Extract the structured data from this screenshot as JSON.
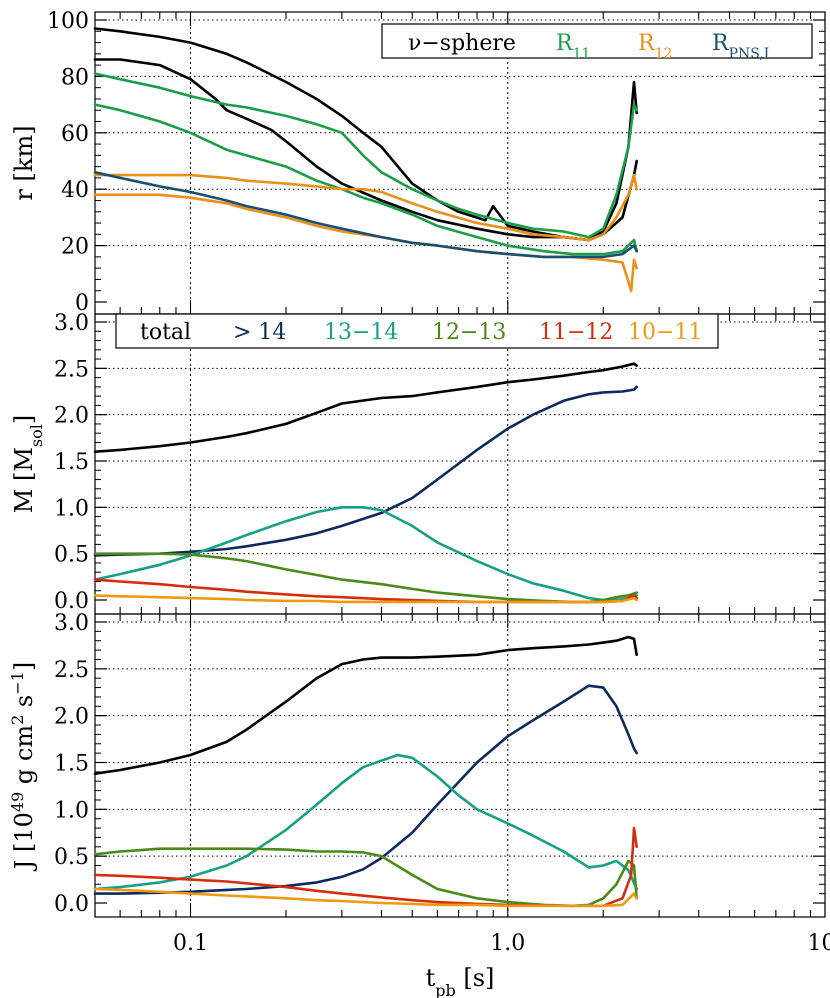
{
  "chart_data": [
    {
      "type": "line",
      "xscale": "log",
      "xlim": [
        0.05,
        10.0
      ],
      "ylim": [
        0,
        100
      ],
      "yticks": [
        "0",
        "20",
        "40",
        "60",
        "80",
        "100"
      ],
      "ylabel": "r [km]",
      "grid": true,
      "legend": {
        "placement": "top-right",
        "labels": [
          {
            "text": "ν−sphere",
            "sub": "",
            "color": "#000000"
          },
          {
            "text": "R",
            "sub": "11",
            "color": "#1a9e47"
          },
          {
            "text": "R",
            "sub": "12",
            "color": "#e8901a"
          },
          {
            "text": "R",
            "sub": "PNS,I",
            "color": "#1b4f72"
          }
        ]
      },
      "series": [
        {
          "color": "#000000",
          "x": [
            0.05,
            0.06,
            0.08,
            0.1,
            0.13,
            0.15,
            0.2,
            0.25,
            0.3,
            0.35,
            0.4,
            0.5,
            0.6,
            0.7,
            0.85,
            0.9,
            1.0,
            1.2,
            1.5,
            1.8,
            2.0,
            2.2,
            2.4,
            2.5,
            2.55
          ],
          "y": [
            97,
            96,
            94,
            92,
            88,
            85,
            78,
            72,
            66,
            60,
            55,
            42,
            36,
            32,
            29,
            34,
            27,
            25,
            23,
            22,
            25,
            35,
            55,
            78,
            67
          ]
        },
        {
          "color": "#000000",
          "x": [
            0.05,
            0.06,
            0.08,
            0.1,
            0.12,
            0.13,
            0.15,
            0.18,
            0.2,
            0.25,
            0.3,
            0.4,
            0.5,
            0.6,
            0.8,
            1.0,
            1.2,
            1.5,
            1.8,
            2.0,
            2.3,
            2.5,
            2.55
          ],
          "y": [
            86,
            86,
            84,
            79,
            72,
            68,
            65,
            61,
            57,
            48,
            42,
            36,
            32,
            29,
            26,
            24,
            23,
            23,
            22,
            24,
            30,
            45,
            50
          ]
        },
        {
          "color": "#1a9e47",
          "x": [
            0.05,
            0.06,
            0.08,
            0.1,
            0.13,
            0.15,
            0.2,
            0.25,
            0.3,
            0.35,
            0.4,
            0.5,
            0.6,
            0.7,
            0.8,
            1.0,
            1.2,
            1.5,
            1.8,
            2.0,
            2.2,
            2.4,
            2.5,
            2.55
          ],
          "y": [
            81,
            79,
            76,
            73,
            70,
            69,
            66,
            63,
            60,
            52,
            46,
            40,
            36,
            33,
            31,
            28,
            26,
            25,
            23,
            26,
            38,
            55,
            70,
            68
          ]
        },
        {
          "color": "#1a9e47",
          "x": [
            0.05,
            0.06,
            0.08,
            0.1,
            0.13,
            0.15,
            0.2,
            0.25,
            0.3,
            0.35,
            0.4,
            0.5,
            0.6,
            0.8,
            1.0,
            1.3,
            1.6,
            2.0,
            2.3,
            2.5,
            2.55
          ],
          "y": [
            70,
            68,
            64,
            60,
            54,
            52,
            48,
            43,
            40,
            37,
            35,
            31,
            27,
            23,
            20,
            18,
            17,
            17,
            18,
            22,
            18
          ]
        },
        {
          "color": "#e8901a",
          "x": [
            0.05,
            0.06,
            0.08,
            0.1,
            0.13,
            0.15,
            0.2,
            0.25,
            0.3,
            0.35,
            0.4,
            0.5,
            0.6,
            0.8,
            1.0,
            1.2,
            1.5,
            1.8,
            2.0,
            2.2,
            2.4,
            2.5,
            2.55
          ],
          "y": [
            45,
            45,
            45,
            45,
            44,
            43,
            42,
            41,
            40,
            40,
            39,
            35,
            32,
            28,
            26,
            24,
            23,
            22,
            24,
            30,
            38,
            45,
            40
          ]
        },
        {
          "color": "#e8901a",
          "x": [
            0.05,
            0.06,
            0.08,
            0.1,
            0.13,
            0.15,
            0.2,
            0.25,
            0.3,
            0.4,
            0.5,
            0.6,
            0.8,
            1.0,
            1.3,
            1.6,
            2.0,
            2.3,
            2.45,
            2.5,
            2.55
          ],
          "y": [
            38,
            38,
            38,
            37,
            35,
            33,
            30,
            27,
            25,
            23,
            21,
            20,
            18,
            17,
            16,
            16,
            15,
            14,
            4,
            15,
            12
          ]
        },
        {
          "color": "#1b4f72",
          "x": [
            0.05,
            0.06,
            0.08,
            0.1,
            0.13,
            0.15,
            0.2,
            0.25,
            0.3,
            0.4,
            0.5,
            0.6,
            0.8,
            1.0,
            1.3,
            1.6,
            2.0,
            2.3,
            2.5,
            2.55
          ],
          "y": [
            46,
            44,
            41,
            39,
            36,
            34,
            31,
            28,
            26,
            23,
            21,
            20,
            18,
            17,
            16,
            16,
            16,
            17,
            20,
            18
          ]
        }
      ]
    },
    {
      "type": "line",
      "xscale": "log",
      "xlim": [
        0.05,
        10.0
      ],
      "ylim": [
        -0.15,
        3.0
      ],
      "yticks": [
        "0.0",
        "0.5",
        "1.0",
        "1.5",
        "2.0",
        "2.5",
        "3.0"
      ],
      "ylabel": "M [M",
      "ylabel_sub": "sol",
      "ylabel_end": "]",
      "grid": true,
      "legend": {
        "placement": "top",
        "labels": [
          {
            "text": "total",
            "color": "#000000"
          },
          {
            "text": "> 14",
            "color": "#0d2a5c"
          },
          {
            "text": "13−14",
            "color": "#16a085"
          },
          {
            "text": "12−13",
            "color": "#4a8a1a"
          },
          {
            "text": "11−12",
            "color": "#d62d0c"
          },
          {
            "text": "10−11",
            "color": "#ee9a10"
          }
        ]
      },
      "series": [
        {
          "color": "#000000",
          "x": [
            0.05,
            0.06,
            0.08,
            0.1,
            0.13,
            0.15,
            0.2,
            0.25,
            0.3,
            0.4,
            0.5,
            0.6,
            0.8,
            1.0,
            1.2,
            1.5,
            1.8,
            2.0,
            2.3,
            2.5,
            2.55
          ],
          "y": [
            1.6,
            1.62,
            1.66,
            1.7,
            1.76,
            1.8,
            1.9,
            2.02,
            2.12,
            2.18,
            2.2,
            2.24,
            2.3,
            2.35,
            2.38,
            2.42,
            2.46,
            2.48,
            2.52,
            2.55,
            2.53
          ]
        },
        {
          "color": "#0d2a5c",
          "x": [
            0.05,
            0.06,
            0.08,
            0.1,
            0.13,
            0.15,
            0.2,
            0.25,
            0.3,
            0.4,
            0.5,
            0.6,
            0.8,
            1.0,
            1.2,
            1.5,
            1.8,
            2.0,
            2.3,
            2.5,
            2.55
          ],
          "y": [
            0.48,
            0.49,
            0.5,
            0.52,
            0.55,
            0.58,
            0.65,
            0.72,
            0.8,
            0.94,
            1.1,
            1.3,
            1.62,
            1.85,
            2.0,
            2.15,
            2.22,
            2.24,
            2.25,
            2.27,
            2.3
          ]
        },
        {
          "color": "#16a085",
          "x": [
            0.05,
            0.06,
            0.08,
            0.1,
            0.13,
            0.15,
            0.2,
            0.25,
            0.3,
            0.35,
            0.4,
            0.5,
            0.6,
            0.8,
            1.0,
            1.2,
            1.5,
            1.8,
            2.0,
            2.2,
            2.4,
            2.55
          ],
          "y": [
            0.22,
            0.28,
            0.38,
            0.48,
            0.62,
            0.7,
            0.85,
            0.95,
            1.0,
            1.0,
            0.97,
            0.8,
            0.62,
            0.42,
            0.28,
            0.18,
            0.1,
            0.02,
            0.0,
            0.0,
            0.02,
            0.05
          ]
        },
        {
          "color": "#4a8a1a",
          "x": [
            0.05,
            0.06,
            0.08,
            0.1,
            0.13,
            0.15,
            0.2,
            0.25,
            0.3,
            0.4,
            0.5,
            0.6,
            0.8,
            1.0,
            1.3,
            1.6,
            1.8,
            2.0,
            2.2,
            2.4,
            2.55
          ],
          "y": [
            0.5,
            0.5,
            0.5,
            0.49,
            0.45,
            0.42,
            0.33,
            0.27,
            0.22,
            0.17,
            0.12,
            0.08,
            0.04,
            0.01,
            -0.01,
            -0.02,
            -0.02,
            0.0,
            0.03,
            0.05,
            0.08
          ]
        },
        {
          "color": "#d62d0c",
          "x": [
            0.05,
            0.06,
            0.08,
            0.1,
            0.13,
            0.15,
            0.2,
            0.25,
            0.3,
            0.4,
            0.5,
            0.6,
            0.8,
            1.0,
            1.5,
            2.0,
            2.3,
            2.5,
            2.55
          ],
          "y": [
            0.22,
            0.2,
            0.17,
            0.14,
            0.11,
            0.09,
            0.06,
            0.04,
            0.03,
            0.01,
            0.0,
            -0.01,
            -0.02,
            -0.02,
            -0.02,
            -0.02,
            -0.01,
            0.05,
            0.02
          ]
        },
        {
          "color": "#ee9a10",
          "x": [
            0.05,
            0.06,
            0.08,
            0.1,
            0.13,
            0.15,
            0.2,
            0.25,
            0.3,
            0.4,
            0.5,
            0.6,
            0.8,
            1.0,
            1.5,
            2.0,
            2.3,
            2.5,
            2.55
          ],
          "y": [
            0.05,
            0.04,
            0.03,
            0.02,
            0.01,
            0.0,
            -0.01,
            -0.01,
            -0.02,
            -0.02,
            -0.02,
            -0.02,
            -0.02,
            -0.02,
            -0.02,
            -0.02,
            -0.01,
            0.02,
            0.0
          ]
        }
      ]
    },
    {
      "type": "line",
      "xscale": "log",
      "xlim": [
        0.05,
        10.0
      ],
      "ylim": [
        -0.15,
        3.0
      ],
      "xticks": [
        "0.1",
        "1.0",
        "10."
      ],
      "yticks": [
        "0.0",
        "0.5",
        "1.0",
        "1.5",
        "2.0",
        "2.5",
        "3.0"
      ],
      "xlabel": "t",
      "xlabel_sub": "pb",
      "xlabel_end": " [s]",
      "ylabel": "J [10",
      "ylabel_sup1": "49",
      "ylabel_mid": " g cm",
      "ylabel_sup2": "2",
      "ylabel_mid2": " s",
      "ylabel_sup3": "−1",
      "ylabel_end": "]",
      "grid": true,
      "series": [
        {
          "color": "#000000",
          "x": [
            0.05,
            0.06,
            0.08,
            0.1,
            0.13,
            0.15,
            0.2,
            0.25,
            0.3,
            0.35,
            0.4,
            0.5,
            0.6,
            0.8,
            1.0,
            1.2,
            1.5,
            1.8,
            2.0,
            2.2,
            2.4,
            2.5,
            2.55
          ],
          "y": [
            1.38,
            1.42,
            1.5,
            1.58,
            1.72,
            1.85,
            2.15,
            2.4,
            2.55,
            2.6,
            2.62,
            2.62,
            2.63,
            2.65,
            2.7,
            2.72,
            2.74,
            2.76,
            2.78,
            2.8,
            2.84,
            2.82,
            2.65
          ]
        },
        {
          "color": "#0d2a5c",
          "x": [
            0.05,
            0.06,
            0.08,
            0.1,
            0.13,
            0.15,
            0.2,
            0.25,
            0.3,
            0.35,
            0.4,
            0.5,
            0.6,
            0.8,
            1.0,
            1.2,
            1.5,
            1.8,
            2.0,
            2.2,
            2.4,
            2.5,
            2.55
          ],
          "y": [
            0.1,
            0.1,
            0.11,
            0.12,
            0.14,
            0.15,
            0.18,
            0.22,
            0.28,
            0.36,
            0.48,
            0.75,
            1.05,
            1.5,
            1.78,
            1.95,
            2.15,
            2.32,
            2.3,
            2.1,
            1.8,
            1.65,
            1.6
          ]
        },
        {
          "color": "#16a085",
          "x": [
            0.05,
            0.06,
            0.08,
            0.1,
            0.13,
            0.15,
            0.2,
            0.25,
            0.3,
            0.35,
            0.4,
            0.45,
            0.5,
            0.6,
            0.7,
            0.8,
            1.0,
            1.2,
            1.5,
            1.8,
            2.0,
            2.2,
            2.4,
            2.55
          ],
          "y": [
            0.15,
            0.17,
            0.22,
            0.28,
            0.4,
            0.5,
            0.78,
            1.05,
            1.28,
            1.45,
            1.52,
            1.58,
            1.55,
            1.35,
            1.15,
            1.0,
            0.85,
            0.72,
            0.55,
            0.38,
            0.4,
            0.45,
            0.35,
            0.15
          ]
        },
        {
          "color": "#4a8a1a",
          "x": [
            0.05,
            0.06,
            0.08,
            0.1,
            0.13,
            0.15,
            0.2,
            0.25,
            0.3,
            0.35,
            0.4,
            0.5,
            0.6,
            0.8,
            1.0,
            1.3,
            1.6,
            1.8,
            2.0,
            2.2,
            2.4,
            2.5,
            2.55
          ],
          "y": [
            0.52,
            0.55,
            0.58,
            0.58,
            0.58,
            0.58,
            0.57,
            0.55,
            0.55,
            0.54,
            0.5,
            0.3,
            0.15,
            0.05,
            0.01,
            -0.02,
            -0.03,
            -0.02,
            0.05,
            0.2,
            0.45,
            0.4,
            0.05
          ]
        },
        {
          "color": "#d62d0c",
          "x": [
            0.05,
            0.06,
            0.08,
            0.1,
            0.13,
            0.15,
            0.2,
            0.25,
            0.3,
            0.4,
            0.5,
            0.6,
            0.8,
            1.0,
            1.5,
            2.0,
            2.3,
            2.45,
            2.5,
            2.55
          ],
          "y": [
            0.3,
            0.29,
            0.27,
            0.25,
            0.23,
            0.21,
            0.17,
            0.13,
            0.1,
            0.06,
            0.03,
            0.01,
            -0.01,
            -0.02,
            -0.03,
            -0.03,
            0.05,
            0.3,
            0.8,
            0.6
          ]
        },
        {
          "color": "#ee9a10",
          "x": [
            0.05,
            0.06,
            0.08,
            0.1,
            0.13,
            0.15,
            0.2,
            0.25,
            0.3,
            0.4,
            0.5,
            0.6,
            0.8,
            1.0,
            1.5,
            2.0,
            2.3,
            2.5,
            2.55
          ],
          "y": [
            0.15,
            0.14,
            0.12,
            0.1,
            0.08,
            0.07,
            0.05,
            0.03,
            0.02,
            0.0,
            -0.01,
            -0.02,
            -0.02,
            -0.03,
            -0.03,
            -0.03,
            -0.02,
            0.1,
            0.05
          ]
        }
      ]
    }
  ]
}
